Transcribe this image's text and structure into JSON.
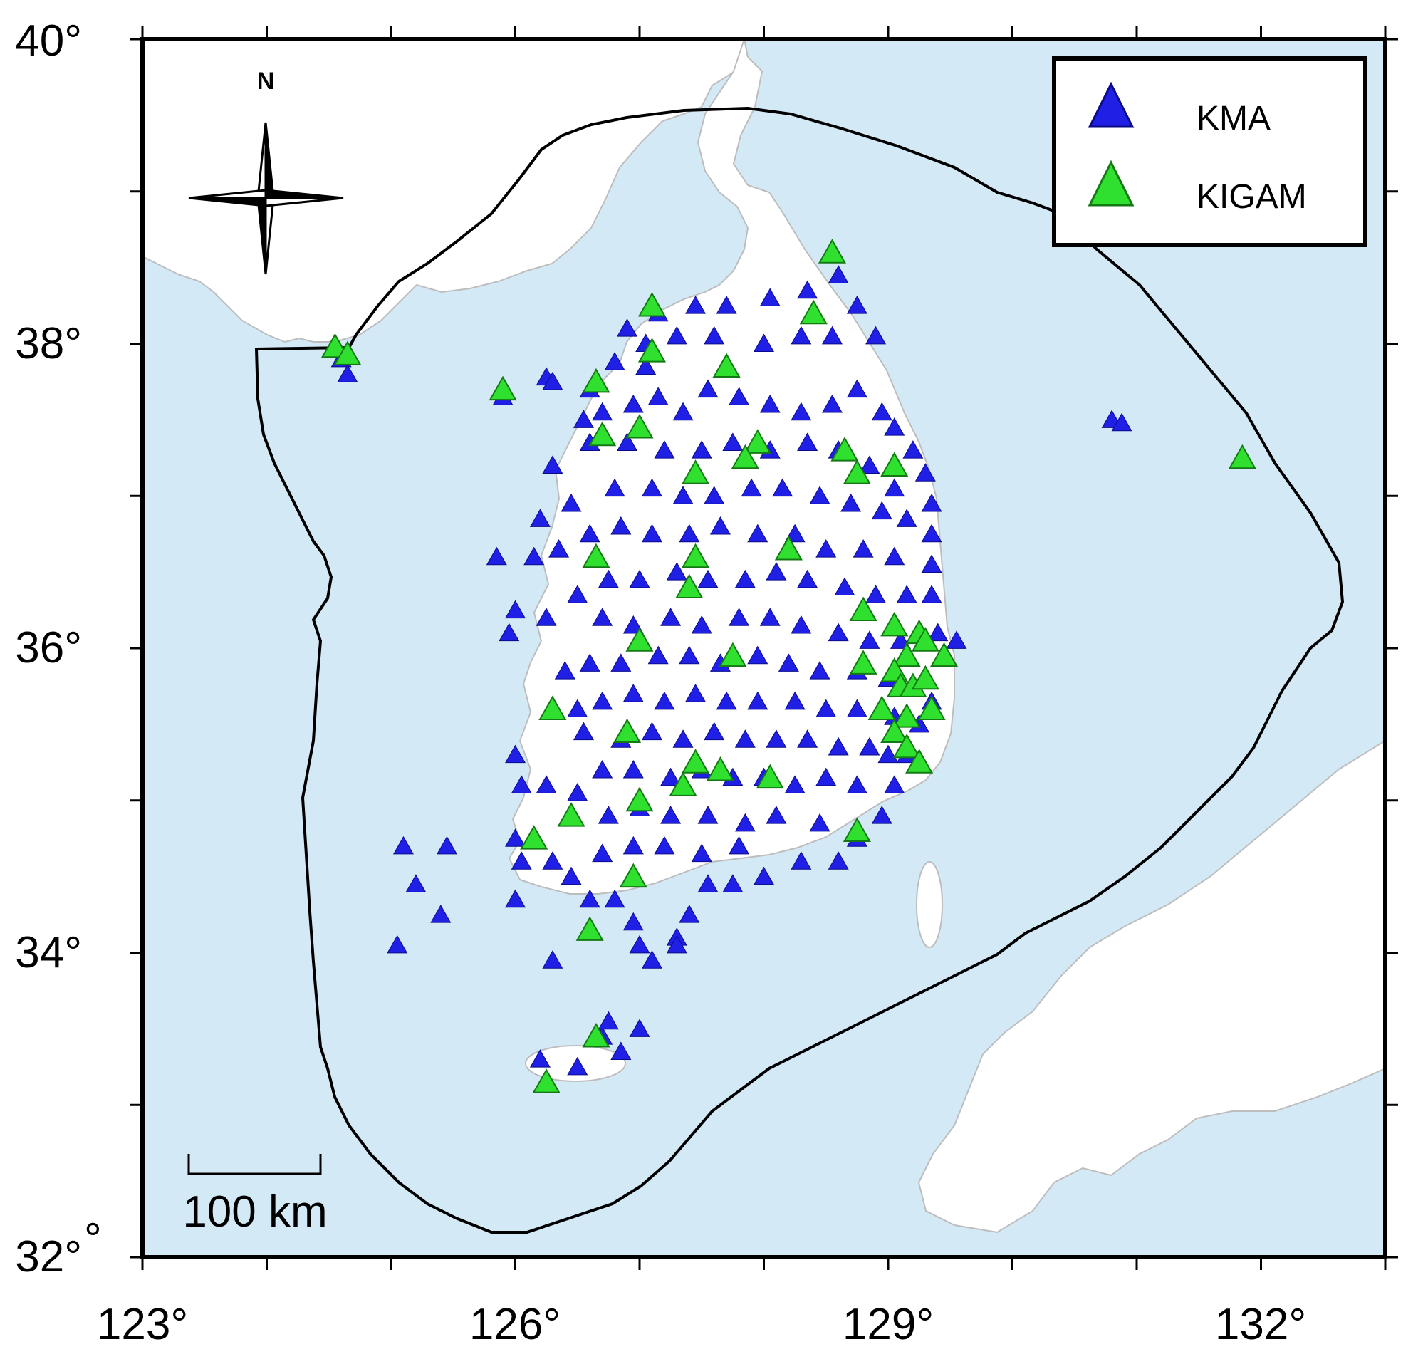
{
  "map": {
    "lon_range": [
      123,
      133
    ],
    "lat_range": [
      32,
      40
    ],
    "colors": {
      "sea": "#d3e9f6",
      "land": "#ffffff",
      "coast": "#bdbdbd",
      "boundary": "#000000"
    }
  },
  "axes": {
    "x_ticks": [
      "123°",
      "126°",
      "129°",
      "132°"
    ],
    "y_ticks": [
      "32°",
      "34°",
      "36°",
      "38°",
      "40°"
    ]
  },
  "legend": {
    "items": [
      {
        "label": "KMA",
        "color": "#1f1fe6"
      },
      {
        "label": "KIGAM",
        "color": "#2fe02f"
      }
    ]
  },
  "north_arrow": {
    "label": "N",
    "icon": "compass-rose-icon"
  },
  "scale_bar": {
    "label": "100 km"
  },
  "chart_data": {
    "type": "scatter",
    "xlim": [
      123,
      133
    ],
    "ylim": [
      32,
      40
    ],
    "series": [
      {
        "name": "KMA",
        "marker": "triangle",
        "color": "#1f1fe6",
        "points": [
          [
            124.6,
            37.9
          ],
          [
            124.65,
            37.8
          ],
          [
            125.9,
            37.65
          ],
          [
            126.25,
            37.78
          ],
          [
            126.3,
            37.75
          ],
          [
            126.6,
            37.7
          ],
          [
            126.8,
            37.88
          ],
          [
            127.05,
            37.85
          ],
          [
            126.55,
            37.5
          ],
          [
            126.7,
            37.55
          ],
          [
            126.95,
            37.6
          ],
          [
            127.15,
            37.65
          ],
          [
            127.35,
            37.55
          ],
          [
            127.55,
            37.7
          ],
          [
            127.8,
            37.65
          ],
          [
            128.05,
            37.6
          ],
          [
            128.3,
            37.55
          ],
          [
            128.55,
            37.6
          ],
          [
            128.75,
            37.7
          ],
          [
            128.95,
            37.55
          ],
          [
            129.05,
            37.45
          ],
          [
            129.2,
            37.3
          ],
          [
            129.3,
            37.15
          ],
          [
            129.35,
            36.95
          ],
          [
            129.35,
            36.75
          ],
          [
            129.35,
            36.55
          ],
          [
            129.35,
            36.35
          ],
          [
            129.4,
            36.1
          ],
          [
            129.55,
            36.05
          ],
          [
            126.9,
            38.1
          ],
          [
            127.15,
            38.2
          ],
          [
            127.45,
            38.25
          ],
          [
            127.7,
            38.25
          ],
          [
            128.05,
            38.3
          ],
          [
            128.35,
            38.35
          ],
          [
            128.6,
            38.45
          ],
          [
            128.75,
            38.25
          ],
          [
            128.9,
            38.05
          ],
          [
            128.55,
            38.05
          ],
          [
            128.3,
            38.05
          ],
          [
            128.0,
            38.0
          ],
          [
            127.6,
            38.05
          ],
          [
            127.3,
            38.05
          ],
          [
            127.05,
            38.0
          ],
          [
            126.3,
            37.2
          ],
          [
            126.45,
            36.95
          ],
          [
            126.2,
            36.85
          ],
          [
            126.35,
            36.65
          ],
          [
            126.15,
            36.6
          ],
          [
            125.85,
            36.6
          ],
          [
            126.0,
            36.25
          ],
          [
            125.95,
            36.1
          ],
          [
            126.25,
            36.2
          ],
          [
            126.5,
            36.35
          ],
          [
            126.4,
            35.85
          ],
          [
            126.5,
            35.6
          ],
          [
            126.55,
            35.45
          ],
          [
            126.0,
            35.3
          ],
          [
            126.05,
            35.1
          ],
          [
            126.25,
            35.1
          ],
          [
            126.5,
            35.05
          ],
          [
            126.0,
            34.75
          ],
          [
            126.05,
            34.6
          ],
          [
            126.3,
            34.6
          ],
          [
            126.45,
            34.5
          ],
          [
            126.6,
            34.35
          ],
          [
            126.8,
            34.35
          ],
          [
            126.95,
            34.2
          ],
          [
            127.0,
            34.05
          ],
          [
            127.3,
            34.1
          ],
          [
            127.4,
            34.25
          ],
          [
            127.55,
            34.45
          ],
          [
            127.75,
            34.45
          ],
          [
            128.0,
            34.5
          ],
          [
            128.3,
            34.6
          ],
          [
            128.6,
            34.6
          ],
          [
            128.75,
            34.75
          ],
          [
            128.95,
            34.9
          ],
          [
            129.05,
            35.1
          ],
          [
            129.15,
            35.3
          ],
          [
            129.25,
            35.5
          ],
          [
            129.35,
            35.65
          ],
          [
            125.1,
            34.7
          ],
          [
            125.45,
            34.7
          ],
          [
            125.2,
            34.45
          ],
          [
            125.4,
            34.25
          ],
          [
            125.05,
            34.05
          ],
          [
            126.0,
            34.35
          ],
          [
            126.3,
            33.95
          ],
          [
            127.1,
            33.95
          ],
          [
            127.3,
            34.05
          ],
          [
            126.2,
            33.3
          ],
          [
            126.5,
            33.25
          ],
          [
            126.7,
            33.45
          ],
          [
            126.85,
            33.35
          ],
          [
            126.75,
            33.55
          ],
          [
            127.0,
            33.5
          ],
          [
            130.8,
            37.5
          ],
          [
            130.88,
            37.48
          ],
          [
            126.6,
            37.35
          ],
          [
            126.9,
            37.35
          ],
          [
            127.2,
            37.3
          ],
          [
            127.5,
            37.3
          ],
          [
            127.75,
            37.35
          ],
          [
            128.05,
            37.3
          ],
          [
            128.35,
            37.35
          ],
          [
            128.6,
            37.3
          ],
          [
            128.85,
            37.2
          ],
          [
            129.05,
            37.05
          ],
          [
            126.8,
            37.05
          ],
          [
            127.1,
            37.05
          ],
          [
            127.35,
            37.0
          ],
          [
            127.6,
            37.0
          ],
          [
            127.9,
            37.05
          ],
          [
            128.15,
            37.05
          ],
          [
            128.45,
            37.0
          ],
          [
            128.7,
            36.95
          ],
          [
            128.95,
            36.9
          ],
          [
            129.15,
            36.85
          ],
          [
            126.6,
            36.75
          ],
          [
            126.85,
            36.8
          ],
          [
            127.1,
            36.75
          ],
          [
            127.4,
            36.75
          ],
          [
            127.65,
            36.8
          ],
          [
            127.95,
            36.75
          ],
          [
            128.25,
            36.75
          ],
          [
            128.5,
            36.65
          ],
          [
            128.8,
            36.65
          ],
          [
            129.05,
            36.6
          ],
          [
            126.75,
            36.45
          ],
          [
            127.0,
            36.45
          ],
          [
            127.3,
            36.5
          ],
          [
            127.55,
            36.45
          ],
          [
            127.85,
            36.45
          ],
          [
            128.1,
            36.5
          ],
          [
            128.35,
            36.45
          ],
          [
            128.65,
            36.4
          ],
          [
            128.9,
            36.35
          ],
          [
            129.15,
            36.35
          ],
          [
            126.7,
            36.2
          ],
          [
            126.95,
            36.15
          ],
          [
            127.25,
            36.2
          ],
          [
            127.5,
            36.15
          ],
          [
            127.8,
            36.2
          ],
          [
            128.05,
            36.2
          ],
          [
            128.3,
            36.15
          ],
          [
            128.6,
            36.1
          ],
          [
            128.85,
            36.05
          ],
          [
            129.1,
            36.05
          ],
          [
            126.6,
            35.9
          ],
          [
            126.85,
            35.9
          ],
          [
            127.15,
            35.95
          ],
          [
            127.4,
            35.95
          ],
          [
            127.65,
            35.9
          ],
          [
            127.95,
            35.95
          ],
          [
            128.2,
            35.9
          ],
          [
            128.45,
            35.85
          ],
          [
            128.75,
            35.85
          ],
          [
            129.0,
            35.8
          ],
          [
            126.7,
            35.65
          ],
          [
            126.95,
            35.7
          ],
          [
            127.2,
            35.65
          ],
          [
            127.45,
            35.7
          ],
          [
            127.7,
            35.65
          ],
          [
            127.95,
            35.65
          ],
          [
            128.25,
            35.65
          ],
          [
            128.5,
            35.6
          ],
          [
            128.75,
            35.6
          ],
          [
            129.05,
            35.55
          ],
          [
            126.85,
            35.4
          ],
          [
            127.1,
            35.45
          ],
          [
            127.35,
            35.4
          ],
          [
            127.6,
            35.45
          ],
          [
            127.85,
            35.4
          ],
          [
            128.1,
            35.4
          ],
          [
            128.35,
            35.4
          ],
          [
            128.6,
            35.35
          ],
          [
            128.85,
            35.35
          ],
          [
            129.0,
            35.3
          ],
          [
            126.7,
            35.2
          ],
          [
            126.95,
            35.2
          ],
          [
            127.25,
            35.15
          ],
          [
            127.5,
            35.2
          ],
          [
            127.75,
            35.15
          ],
          [
            128.0,
            35.15
          ],
          [
            128.25,
            35.1
          ],
          [
            128.5,
            35.15
          ],
          [
            128.75,
            35.1
          ],
          [
            126.75,
            34.9
          ],
          [
            127.0,
            34.95
          ],
          [
            127.25,
            34.9
          ],
          [
            127.55,
            34.9
          ],
          [
            127.85,
            34.85
          ],
          [
            128.1,
            34.9
          ],
          [
            128.45,
            34.85
          ],
          [
            126.7,
            34.65
          ],
          [
            126.95,
            34.7
          ],
          [
            127.2,
            34.7
          ],
          [
            127.5,
            34.65
          ],
          [
            127.8,
            34.7
          ]
        ]
      },
      {
        "name": "KIGAM",
        "marker": "triangle",
        "color": "#2fe02f",
        "points": [
          [
            124.55,
            37.98
          ],
          [
            124.65,
            37.93
          ],
          [
            125.9,
            37.7
          ],
          [
            126.65,
            37.75
          ],
          [
            127.1,
            38.25
          ],
          [
            127.1,
            37.95
          ],
          [
            128.4,
            38.2
          ],
          [
            127.7,
            37.85
          ],
          [
            128.55,
            38.6
          ],
          [
            126.7,
            37.4
          ],
          [
            127.0,
            37.45
          ],
          [
            127.95,
            37.35
          ],
          [
            127.85,
            37.25
          ],
          [
            128.65,
            37.3
          ],
          [
            128.75,
            37.15
          ],
          [
            129.05,
            37.2
          ],
          [
            127.45,
            37.15
          ],
          [
            126.65,
            36.6
          ],
          [
            127.45,
            36.6
          ],
          [
            127.4,
            36.4
          ],
          [
            128.2,
            36.65
          ],
          [
            128.8,
            36.25
          ],
          [
            129.05,
            36.15
          ],
          [
            129.25,
            36.1
          ],
          [
            129.3,
            36.05
          ],
          [
            129.15,
            35.95
          ],
          [
            129.45,
            35.95
          ],
          [
            128.8,
            35.9
          ],
          [
            129.05,
            35.85
          ],
          [
            129.1,
            35.75
          ],
          [
            129.2,
            35.75
          ],
          [
            129.3,
            35.8
          ],
          [
            129.35,
            35.6
          ],
          [
            128.95,
            35.6
          ],
          [
            129.15,
            35.55
          ],
          [
            129.05,
            35.45
          ],
          [
            129.15,
            35.35
          ],
          [
            129.25,
            35.25
          ],
          [
            127.0,
            36.05
          ],
          [
            127.75,
            35.95
          ],
          [
            126.3,
            35.6
          ],
          [
            126.9,
            35.45
          ],
          [
            127.45,
            35.25
          ],
          [
            127.65,
            35.2
          ],
          [
            128.05,
            35.15
          ],
          [
            127.35,
            35.1
          ],
          [
            126.45,
            34.9
          ],
          [
            127.0,
            35.0
          ],
          [
            126.15,
            34.75
          ],
          [
            128.75,
            34.8
          ],
          [
            126.95,
            34.5
          ],
          [
            126.6,
            34.15
          ],
          [
            126.65,
            33.45
          ],
          [
            126.25,
            33.15
          ],
          [
            131.85,
            37.25
          ]
        ]
      }
    ]
  }
}
